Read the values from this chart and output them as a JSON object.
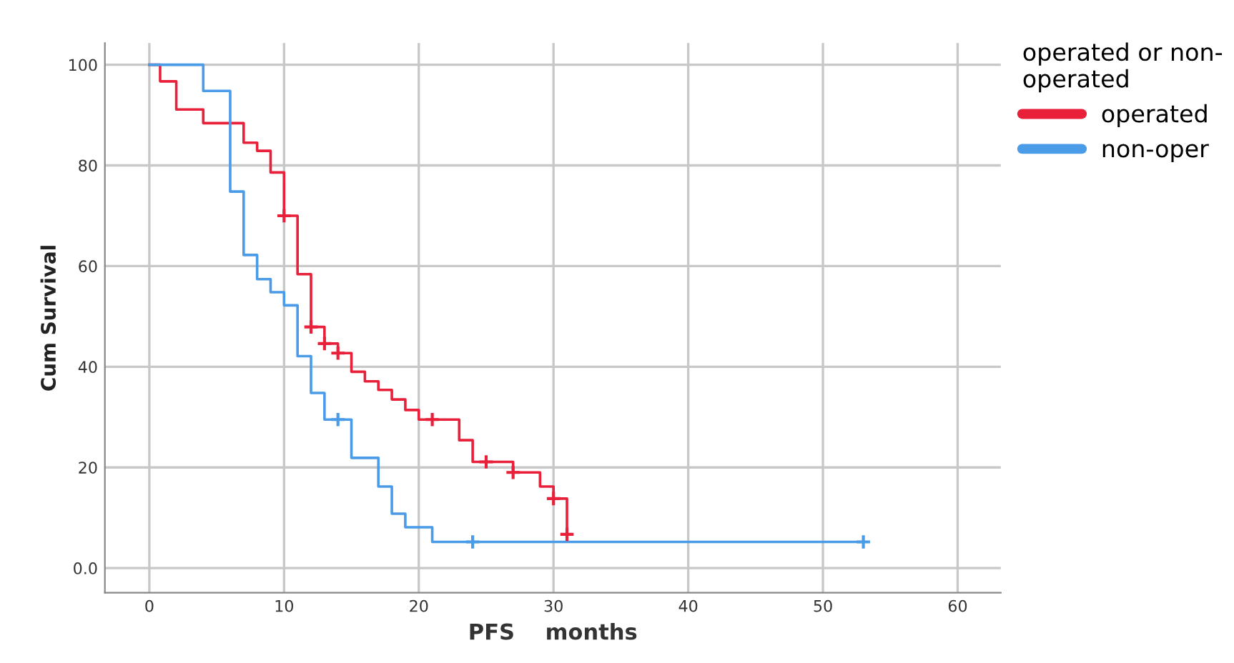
{
  "chart_data": {
    "type": "step",
    "xlabel": "PFS    months",
    "ylabel": "Cum Survival",
    "legend_title": "operated or non-\noperated",
    "series": [
      {
        "name": "operated",
        "color": "#e8203a",
        "x": [
          0,
          0.8,
          2,
          4,
          7,
          8,
          9,
          10,
          11,
          12,
          13,
          14,
          15,
          16,
          17,
          18,
          19,
          20,
          23,
          24,
          27,
          29,
          30,
          31
        ],
        "values": [
          100,
          96.7,
          91.1,
          88.4,
          84.5,
          82.9,
          78.6,
          70.0,
          58.4,
          47.9,
          44.6,
          42.7,
          39.0,
          37.1,
          35.4,
          33.5,
          31.4,
          29.5,
          25.4,
          21.1,
          19.0,
          16.2,
          13.8,
          6.7
        ]
      },
      {
        "name": "non-oper",
        "color": "#4a9be8",
        "x": [
          0,
          4,
          6,
          7,
          8,
          9,
          10,
          11,
          12,
          13,
          15,
          17,
          18,
          19,
          21,
          53
        ],
        "values": [
          100,
          94.8,
          74.8,
          62.2,
          57.4,
          54.8,
          52.2,
          42.1,
          34.8,
          29.5,
          21.9,
          16.2,
          10.8,
          8.1,
          5.2,
          5.2
        ]
      },
      {
        "type": "scatter",
        "marker": "cross",
        "color": "#e8203a",
        "x": [
          10,
          12,
          13,
          14,
          21,
          25,
          27,
          30,
          31
        ],
        "values": [
          70.0,
          47.9,
          44.6,
          42.7,
          29.5,
          21.1,
          19.0,
          13.8,
          6.7
        ]
      },
      {
        "type": "scatter",
        "marker": "cross",
        "color": "#4a9be8",
        "x": [
          14,
          24,
          53
        ],
        "values": [
          29.5,
          5.2,
          5.2
        ]
      }
    ],
    "xlim": [
      -3.3,
      63.2
    ],
    "xticks": [
      0,
      10,
      20,
      30,
      40,
      50,
      60
    ],
    "ylim": [
      -4.9,
      104.3
    ],
    "yticks": [
      {
        "value": 0,
        "label": "0.0"
      },
      20,
      40,
      60,
      80,
      100
    ],
    "grid": true,
    "legend": "top right",
    "line_style": "solid"
  }
}
